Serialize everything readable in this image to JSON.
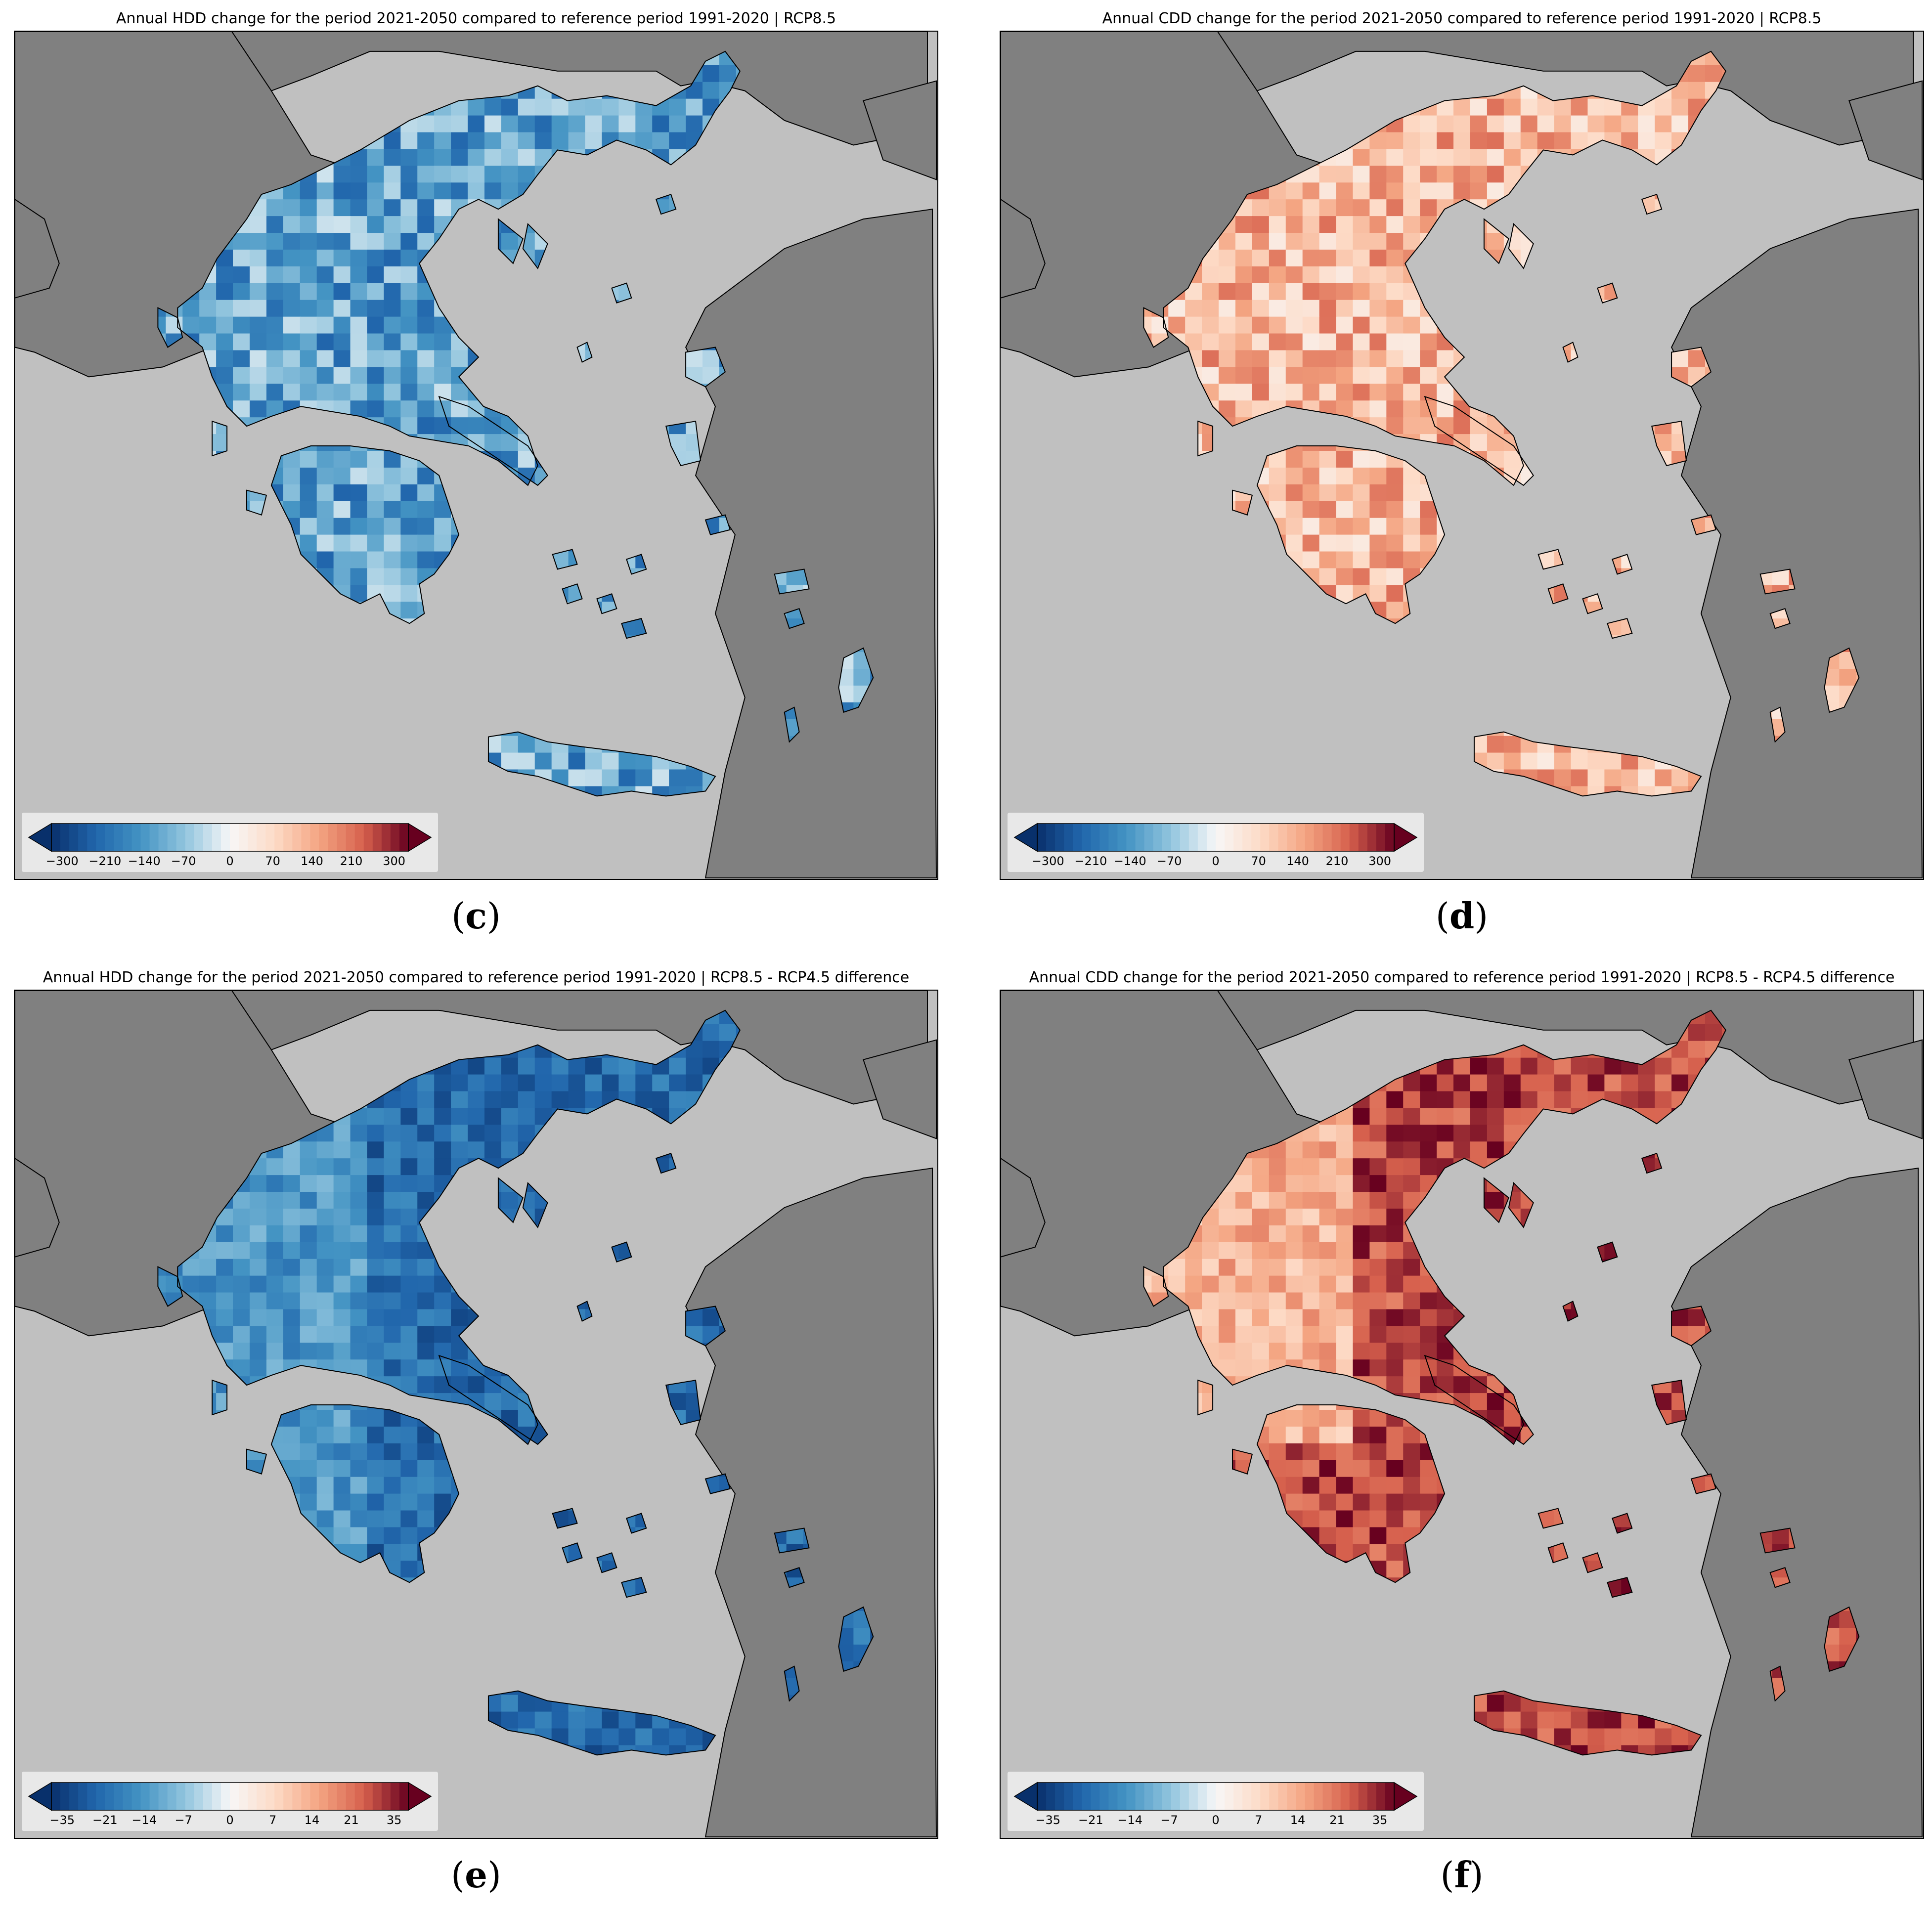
{
  "figure": {
    "panels": [
      {
        "letter": "c",
        "title": "Annual HDD change for the period 2021-2050 compared to reference period 1991-2020 | RCP8.5",
        "palette": "blue",
        "colorbar": {
          "ticks": [
            "−300",
            "−210",
            "−140",
            "−70",
            "0",
            "70",
            "140",
            "210",
            "300"
          ]
        }
      },
      {
        "letter": "d",
        "title": "Annual CDD change for the period 2021-2050 compared to reference period 1991-2020 | RCP8.5",
        "palette": "red-light",
        "colorbar": {
          "ticks": [
            "−300",
            "−210",
            "−140",
            "−70",
            "0",
            "70",
            "140",
            "210",
            "300"
          ]
        }
      },
      {
        "letter": "e",
        "title": "Annual HDD change for the period 2021-2050 compared to reference period 1991-2020 | RCP8.5 - RCP4.5 difference",
        "palette": "blue-deep",
        "colorbar": {
          "ticks": [
            "−35",
            "−21",
            "−14",
            "−7",
            "0",
            "7",
            "14",
            "21",
            "35"
          ]
        }
      },
      {
        "letter": "f",
        "title": "Annual CDD change for the period 2021-2050 compared to reference period 1991-2020 | RCP8.5 - RCP4.5 difference",
        "palette": "red-deep",
        "colorbar": {
          "ticks": [
            "−35",
            "−21",
            "−14",
            "−7",
            "0",
            "7",
            "14",
            "21",
            "35"
          ]
        }
      }
    ],
    "colors": {
      "sea": "#c0c0c0",
      "foreign_land": "#808080",
      "colormap": [
        "#08306b",
        "#2166ac",
        "#4393c3",
        "#92c5de",
        "#f7f7f7",
        "#fddbc7",
        "#f4a582",
        "#d6604d",
        "#67001f"
      ]
    }
  }
}
